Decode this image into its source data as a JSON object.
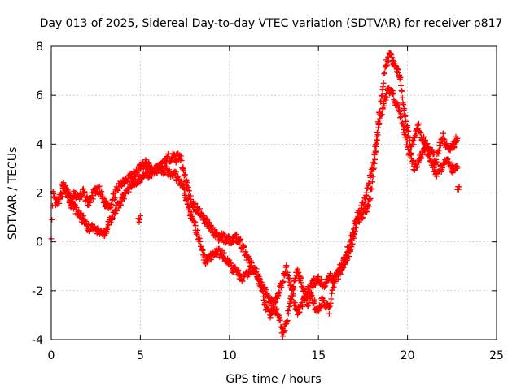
{
  "chart_data": {
    "type": "scatter",
    "title": "Day 013 of 2025, Sidereal Day-to-day VTEC variation (SDTVAR) for receiver p817",
    "xlabel": "GPS time / hours",
    "ylabel": "SDTVAR / TECUs",
    "xlim": [
      0,
      25
    ],
    "ylim": [
      -4,
      8
    ],
    "xticks": [
      0,
      5,
      10,
      15,
      20,
      25
    ],
    "yticks": [
      -4,
      -2,
      0,
      2,
      4,
      6,
      8
    ],
    "grid": true,
    "marker": "+",
    "color": "#ff0000",
    "series": [
      {
        "name": "SDTVAR",
        "tracks": [
          [
            [
              0.0,
              0.3
            ],
            [
              0.1,
              1.9
            ],
            [
              0.3,
              1.5
            ],
            [
              0.5,
              1.8
            ],
            [
              0.7,
              2.2
            ],
            [
              0.9,
              2.1
            ],
            [
              1.1,
              1.4
            ],
            [
              1.3,
              2.0
            ],
            [
              1.5,
              1.8
            ],
            [
              1.8,
              2.0
            ],
            [
              2.1,
              1.6
            ],
            [
              2.4,
              2.0
            ],
            [
              2.7,
              2.1
            ],
            [
              3.0,
              1.6
            ],
            [
              3.3,
              1.5
            ],
            [
              3.6,
              2.0
            ],
            [
              3.9,
              2.4
            ],
            [
              4.2,
              2.6
            ],
            [
              4.5,
              2.7
            ],
            [
              4.8,
              2.8
            ],
            [
              5.0,
              3.1
            ],
            [
              5.3,
              3.2
            ],
            [
              5.6,
              3.0
            ],
            [
              5.9,
              3.0
            ],
            [
              6.2,
              3.1
            ],
            [
              6.5,
              3.4
            ],
            [
              6.8,
              3.5
            ],
            [
              7.0,
              3.4
            ],
            [
              7.2,
              3.6
            ],
            [
              7.4,
              3.0
            ],
            [
              7.6,
              2.4
            ],
            [
              7.8,
              1.8
            ],
            [
              8.0,
              1.5
            ],
            [
              8.2,
              1.3
            ],
            [
              8.4,
              1.2
            ],
            [
              8.6,
              0.9
            ],
            [
              8.8,
              0.8
            ],
            [
              9.0,
              0.5
            ],
            [
              9.2,
              0.3
            ],
            [
              9.4,
              0.2
            ],
            [
              9.6,
              0.2
            ],
            [
              9.8,
              0.1
            ],
            [
              10.0,
              0.1
            ],
            [
              10.2,
              0.1
            ],
            [
              10.4,
              0.2
            ],
            [
              10.6,
              0.0
            ],
            [
              10.8,
              -0.3
            ],
            [
              11.0,
              -0.7
            ],
            [
              11.2,
              -0.9
            ],
            [
              11.4,
              -1.2
            ],
            [
              11.6,
              -1.5
            ],
            [
              11.8,
              -1.8
            ],
            [
              12.0,
              -2.0
            ],
            [
              12.2,
              -2.3
            ],
            [
              12.4,
              -2.5
            ],
            [
              12.6,
              -2.8
            ],
            [
              12.8,
              -3.2
            ],
            [
              13.0,
              -3.7
            ],
            [
              13.2,
              -3.3
            ],
            [
              13.4,
              -2.5
            ],
            [
              13.6,
              -1.8
            ],
            [
              13.8,
              -1.2
            ],
            [
              14.0,
              -1.6
            ],
            [
              14.2,
              -2.1
            ],
            [
              14.4,
              -2.5
            ],
            [
              14.6,
              -2.2
            ],
            [
              14.8,
              -2.6
            ],
            [
              15.0,
              -2.8
            ],
            [
              15.2,
              -2.4
            ],
            [
              15.4,
              -2.6
            ],
            [
              15.6,
              -2.8
            ],
            [
              15.8,
              -1.8
            ],
            [
              16.0,
              -1.4
            ],
            [
              16.2,
              -1.1
            ],
            [
              16.4,
              -0.9
            ],
            [
              16.6,
              -0.6
            ],
            [
              16.8,
              -0.3
            ],
            [
              17.0,
              0.3
            ],
            [
              17.2,
              0.8
            ],
            [
              17.4,
              1.1
            ],
            [
              17.6,
              1.2
            ],
            [
              17.8,
              1.5
            ],
            [
              18.0,
              2.2
            ],
            [
              18.2,
              3.6
            ],
            [
              18.4,
              5.2
            ],
            [
              18.6,
              6.3
            ],
            [
              18.8,
              7.3
            ],
            [
              19.0,
              7.6
            ],
            [
              19.2,
              7.4
            ],
            [
              19.4,
              7.1
            ],
            [
              19.6,
              6.6
            ],
            [
              19.8,
              5.4
            ],
            [
              20.0,
              4.6
            ],
            [
              20.2,
              3.8
            ],
            [
              20.4,
              4.3
            ],
            [
              20.6,
              4.8
            ],
            [
              20.8,
              4.2
            ],
            [
              21.0,
              4.1
            ],
            [
              21.2,
              3.8
            ],
            [
              21.4,
              3.6
            ],
            [
              21.6,
              3.3
            ],
            [
              21.8,
              3.9
            ],
            [
              22.0,
              4.3
            ],
            [
              22.2,
              3.9
            ],
            [
              22.4,
              3.7
            ],
            [
              22.6,
              4.0
            ],
            [
              22.8,
              4.3
            ]
          ],
          [
            [
              0.6,
              2.4
            ],
            [
              0.9,
              2.0
            ],
            [
              1.2,
              1.5
            ],
            [
              1.5,
              1.2
            ],
            [
              1.8,
              0.9
            ],
            [
              2.0,
              0.6
            ],
            [
              2.3,
              0.6
            ],
            [
              2.6,
              0.4
            ],
            [
              2.9,
              0.3
            ],
            [
              3.1,
              0.4
            ],
            [
              3.2,
              0.7
            ],
            [
              3.6,
              1.3
            ],
            [
              4.0,
              1.8
            ],
            [
              4.5,
              2.3
            ],
            [
              5.0,
              2.6
            ],
            [
              5.5,
              2.8
            ],
            [
              6.0,
              3.0
            ],
            [
              6.5,
              2.9
            ],
            [
              7.0,
              2.7
            ],
            [
              7.3,
              2.4
            ],
            [
              7.5,
              2.0
            ],
            [
              7.7,
              1.4
            ],
            [
              7.9,
              1.0
            ],
            [
              8.1,
              0.6
            ],
            [
              8.3,
              0.1
            ],
            [
              8.5,
              -0.5
            ],
            [
              8.7,
              -0.8
            ],
            [
              9.0,
              -0.6
            ],
            [
              9.3,
              -0.4
            ],
            [
              9.6,
              -0.5
            ],
            [
              9.9,
              -0.8
            ],
            [
              10.2,
              -1.1
            ],
            [
              10.5,
              -1.3
            ],
            [
              10.8,
              -1.5
            ],
            [
              11.1,
              -1.3
            ],
            [
              11.4,
              -1.0
            ],
            [
              11.7,
              -1.6
            ],
            [
              12.0,
              -2.6
            ],
            [
              12.3,
              -3.0
            ],
            [
              12.6,
              -2.4
            ],
            [
              12.9,
              -1.8
            ],
            [
              13.2,
              -1.1
            ],
            [
              13.5,
              -2.0
            ],
            [
              13.8,
              -2.9
            ],
            [
              14.1,
              -2.5
            ],
            [
              14.4,
              -2.0
            ],
            [
              14.7,
              -1.7
            ],
            [
              15.0,
              -1.5
            ],
            [
              15.3,
              -1.8
            ],
            [
              15.6,
              -1.4
            ],
            [
              15.9,
              -1.5
            ],
            [
              16.2,
              -1.3
            ],
            [
              16.5,
              -0.6
            ],
            [
              16.8,
              0.1
            ],
            [
              17.1,
              0.9
            ],
            [
              17.4,
              1.4
            ],
            [
              17.7,
              2.0
            ],
            [
              18.0,
              3.0
            ],
            [
              18.3,
              4.3
            ],
            [
              18.6,
              5.5
            ],
            [
              18.9,
              6.2
            ],
            [
              19.2,
              6.0
            ],
            [
              19.5,
              5.4
            ],
            [
              19.8,
              4.6
            ],
            [
              20.1,
              3.6
            ],
            [
              20.4,
              3.0
            ],
            [
              20.7,
              3.4
            ],
            [
              21.0,
              3.9
            ],
            [
              21.3,
              3.4
            ],
            [
              21.6,
              2.8
            ],
            [
              21.9,
              3.0
            ],
            [
              22.2,
              3.3
            ],
            [
              22.5,
              3.0
            ],
            [
              22.8,
              3.1
            ]
          ],
          [
            [
              4.9,
              0.9
            ],
            [
              5.0,
              1.0
            ]
          ],
          [
            [
              22.8,
              2.2
            ],
            [
              22.9,
              2.3
            ]
          ]
        ]
      }
    ]
  }
}
